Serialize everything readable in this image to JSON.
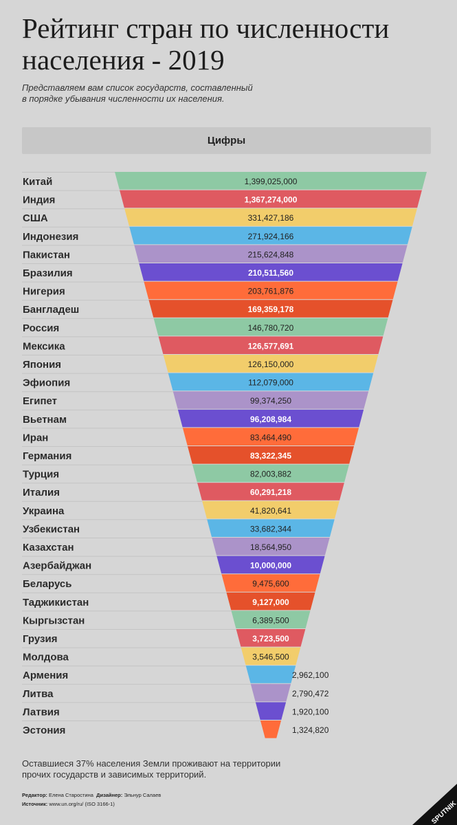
{
  "title_line1": "Рейтинг стран по численности",
  "title_line2": "населения - 2019",
  "subtitle_line1": "Представляем вам список государств, составленный",
  "subtitle_line2": "в порядке убывания численности их населения.",
  "header": "Цифры",
  "footnote_line1": "Оставшиеся 37% населения Земли проживают на территории",
  "footnote_line2": "прочих государств и зависимых территорий.",
  "credits": {
    "editor_label": "Редактор:",
    "editor": "Елена Старостина",
    "designer_label": "Дизайнер:",
    "designer": "Эльнур Салаев",
    "source_label": "Источник:",
    "source": "www.un.org/ru/ (ISO 3166-1)"
  },
  "logo_text": "SPUTNIK",
  "colors": {
    "green": "#8ec9a4",
    "red": "#df5a61",
    "yellow": "#f2cd6b",
    "blue": "#5bb6e6",
    "lavender": "#ab93c9",
    "purple": "#6b4fd0",
    "orange": "#ff6c3a",
    "dark_orange": "#e5512b",
    "background": "#d6d6d6",
    "header_bar": "#c7c7c7"
  },
  "chart_data": {
    "type": "bar",
    "categories": [
      "Китай",
      "Индия",
      "США",
      "Индонезия",
      "Пакистан",
      "Бразилия",
      "Нигерия",
      "Бангладеш",
      "Россия",
      "Мексика",
      "Япония",
      "Эфиопия",
      "Египет",
      "Вьетнам",
      "Иран",
      "Германия",
      "Турция",
      "Италия",
      "Украина",
      "Узбекистан",
      "Казахстан",
      "Азербайджан",
      "Беларусь",
      "Таджикистан",
      "Кыргызстан",
      "Грузия",
      "Молдова",
      "Армения",
      "Литва",
      "Латвия",
      "Эстония"
    ],
    "values": [
      1399025000,
      1367274000,
      331427186,
      271924166,
      215624848,
      210511560,
      203761876,
      169359178,
      146780720,
      126577691,
      126150000,
      112079000,
      99374250,
      96208984,
      83464490,
      83322345,
      82003882,
      60291218,
      41820641,
      33682344,
      18564950,
      10000000,
      9475600,
      9127000,
      6389500,
      3723500,
      3546500,
      2962100,
      2790472,
      1920100,
      1324820
    ],
    "value_labels": [
      "1,399,025,000",
      "1,367,274,000",
      "331,427,186",
      "271,924,166",
      "215,624,848",
      "210,511,560",
      "203,761,876",
      "169,359,178",
      "146,780,720",
      "126,577,691",
      "126,150,000",
      "112,079,000",
      "99,374,250",
      "96,208,984",
      "83,464,490",
      "83,322,345",
      "82,003,882",
      "60,291,218",
      "41,820,641",
      "33,682,344",
      "18,564,950",
      "10,000,000",
      "9,475,600",
      "9,127,000",
      "6,389,500",
      "3,723,500",
      "3,546,500",
      "2,962,100",
      "2,790,472",
      "1,920,100",
      "1,324,820"
    ],
    "bar_colors": [
      "green",
      "red",
      "yellow",
      "blue",
      "lavender",
      "purple",
      "orange",
      "dark_orange",
      "green",
      "red",
      "yellow",
      "blue",
      "lavender",
      "purple",
      "orange",
      "dark_orange",
      "green",
      "red",
      "yellow",
      "blue",
      "lavender",
      "purple",
      "orange",
      "dark_orange",
      "green",
      "red",
      "yellow",
      "blue",
      "lavender",
      "purple",
      "orange"
    ],
    "label_white": [
      false,
      true,
      false,
      false,
      false,
      true,
      false,
      true,
      false,
      true,
      false,
      false,
      false,
      true,
      false,
      true,
      false,
      true,
      false,
      false,
      false,
      true,
      false,
      true,
      false,
      true,
      false,
      false,
      false,
      false,
      false
    ],
    "label_outside": [
      false,
      false,
      false,
      false,
      false,
      false,
      false,
      false,
      false,
      false,
      false,
      false,
      false,
      false,
      false,
      false,
      false,
      false,
      false,
      false,
      false,
      false,
      false,
      false,
      false,
      false,
      false,
      true,
      true,
      true,
      true
    ],
    "shape": "inverted-funnel",
    "legend": "none",
    "grid": false
  }
}
